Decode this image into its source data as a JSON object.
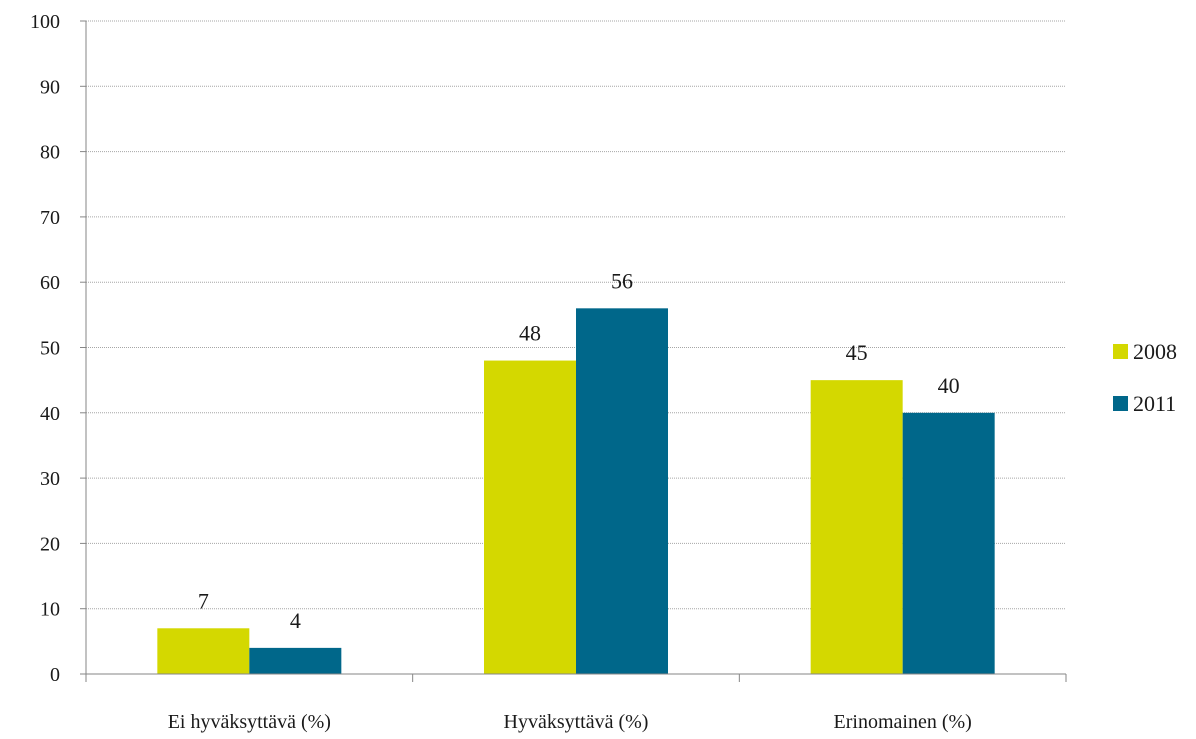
{
  "chart_data": {
    "type": "bar",
    "title": "",
    "xlabel": "",
    "ylabel": "",
    "categories": [
      "Ei hyväksyttävä (%)",
      "Hyväksyttävä (%)",
      "Erinomainen (%)"
    ],
    "series": [
      {
        "name": "2008",
        "values": [
          7,
          48,
          45
        ],
        "color": "#d4d800"
      },
      {
        "name": "2011",
        "values": [
          4,
          56,
          40
        ],
        "color": "#00678a"
      }
    ],
    "ylim": [
      0,
      100
    ],
    "yticks": [
      0,
      10,
      20,
      30,
      40,
      50,
      60,
      70,
      80,
      90,
      100
    ],
    "grid": true,
    "legend_position": "right",
    "data_labels": true
  }
}
